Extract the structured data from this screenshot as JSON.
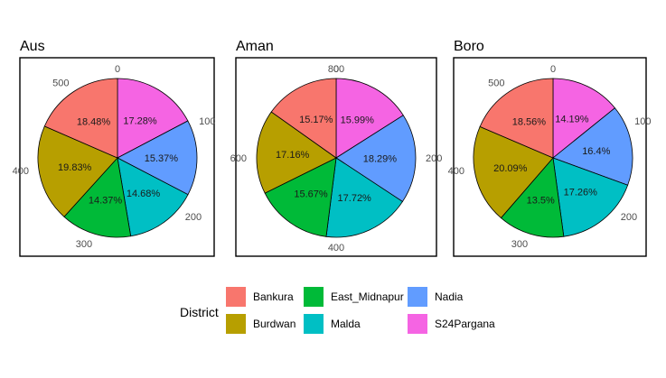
{
  "chart_data": {
    "type": "pie",
    "facets": [
      {
        "title": "Aus",
        "ticks": [
          0,
          100,
          200,
          300,
          400,
          500
        ],
        "tick_max": 550,
        "slices": [
          {
            "district": "Bankura",
            "percent": 18.48,
            "label": "18.48%"
          },
          {
            "district": "Burdwan",
            "percent": 19.83,
            "label": "19.83%"
          },
          {
            "district": "East_Midnapur",
            "percent": 14.37,
            "label": "14.37%"
          },
          {
            "district": "Malda",
            "percent": 14.68,
            "label": "14.68%"
          },
          {
            "district": "Nadia",
            "percent": 15.37,
            "label": "15.37%"
          },
          {
            "district": "S24Pargana",
            "percent": 17.28,
            "label": "17.28%"
          }
        ]
      },
      {
        "title": "Aman",
        "ticks": [
          0,
          200,
          400,
          600,
          800
        ],
        "tick_max": 800,
        "slices": [
          {
            "district": "Bankura",
            "percent": 15.17,
            "label": "15.17%"
          },
          {
            "district": "Burdwan",
            "percent": 17.16,
            "label": "17.16%"
          },
          {
            "district": "East_Midnapur",
            "percent": 15.67,
            "label": "15.67%"
          },
          {
            "district": "Malda",
            "percent": 17.72,
            "label": "17.72%"
          },
          {
            "district": "Nadia",
            "percent": 18.29,
            "label": "18.29%"
          },
          {
            "district": "S24Pargana",
            "percent": 15.99,
            "label": "15.99%"
          }
        ]
      },
      {
        "title": "Boro",
        "ticks": [
          0,
          100,
          200,
          300,
          400,
          500
        ],
        "tick_max": 550,
        "slices": [
          {
            "district": "Bankura",
            "percent": 18.56,
            "label": "18.56%"
          },
          {
            "district": "Burdwan",
            "percent": 20.09,
            "label": "20.09%"
          },
          {
            "district": "East_Midnapur",
            "percent": 13.5,
            "label": "13.5%"
          },
          {
            "district": "Malda",
            "percent": 17.26,
            "label": "17.26%"
          },
          {
            "district": "Nadia",
            "percent": 16.4,
            "label": "16.4%"
          },
          {
            "district": "S24Pargana",
            "percent": 14.19,
            "label": "14.19%"
          }
        ]
      }
    ],
    "legend": {
      "title": "District",
      "position": "bottom",
      "items": [
        {
          "name": "Bankura",
          "color": "#F8766D"
        },
        {
          "name": "Burdwan",
          "color": "#B79F00"
        },
        {
          "name": "East_Midnapur",
          "color": "#00BA38"
        },
        {
          "name": "Malda",
          "color": "#00BFC4"
        },
        {
          "name": "Nadia",
          "color": "#619CFF"
        },
        {
          "name": "S24Pargana",
          "color": "#F564E3"
        }
      ]
    },
    "slice_order": [
      "S24Pargana",
      "Nadia",
      "Malda",
      "East_Midnapur",
      "Burdwan",
      "Bankura"
    ],
    "direction": "clockwise",
    "start": "top",
    "grid": true
  }
}
